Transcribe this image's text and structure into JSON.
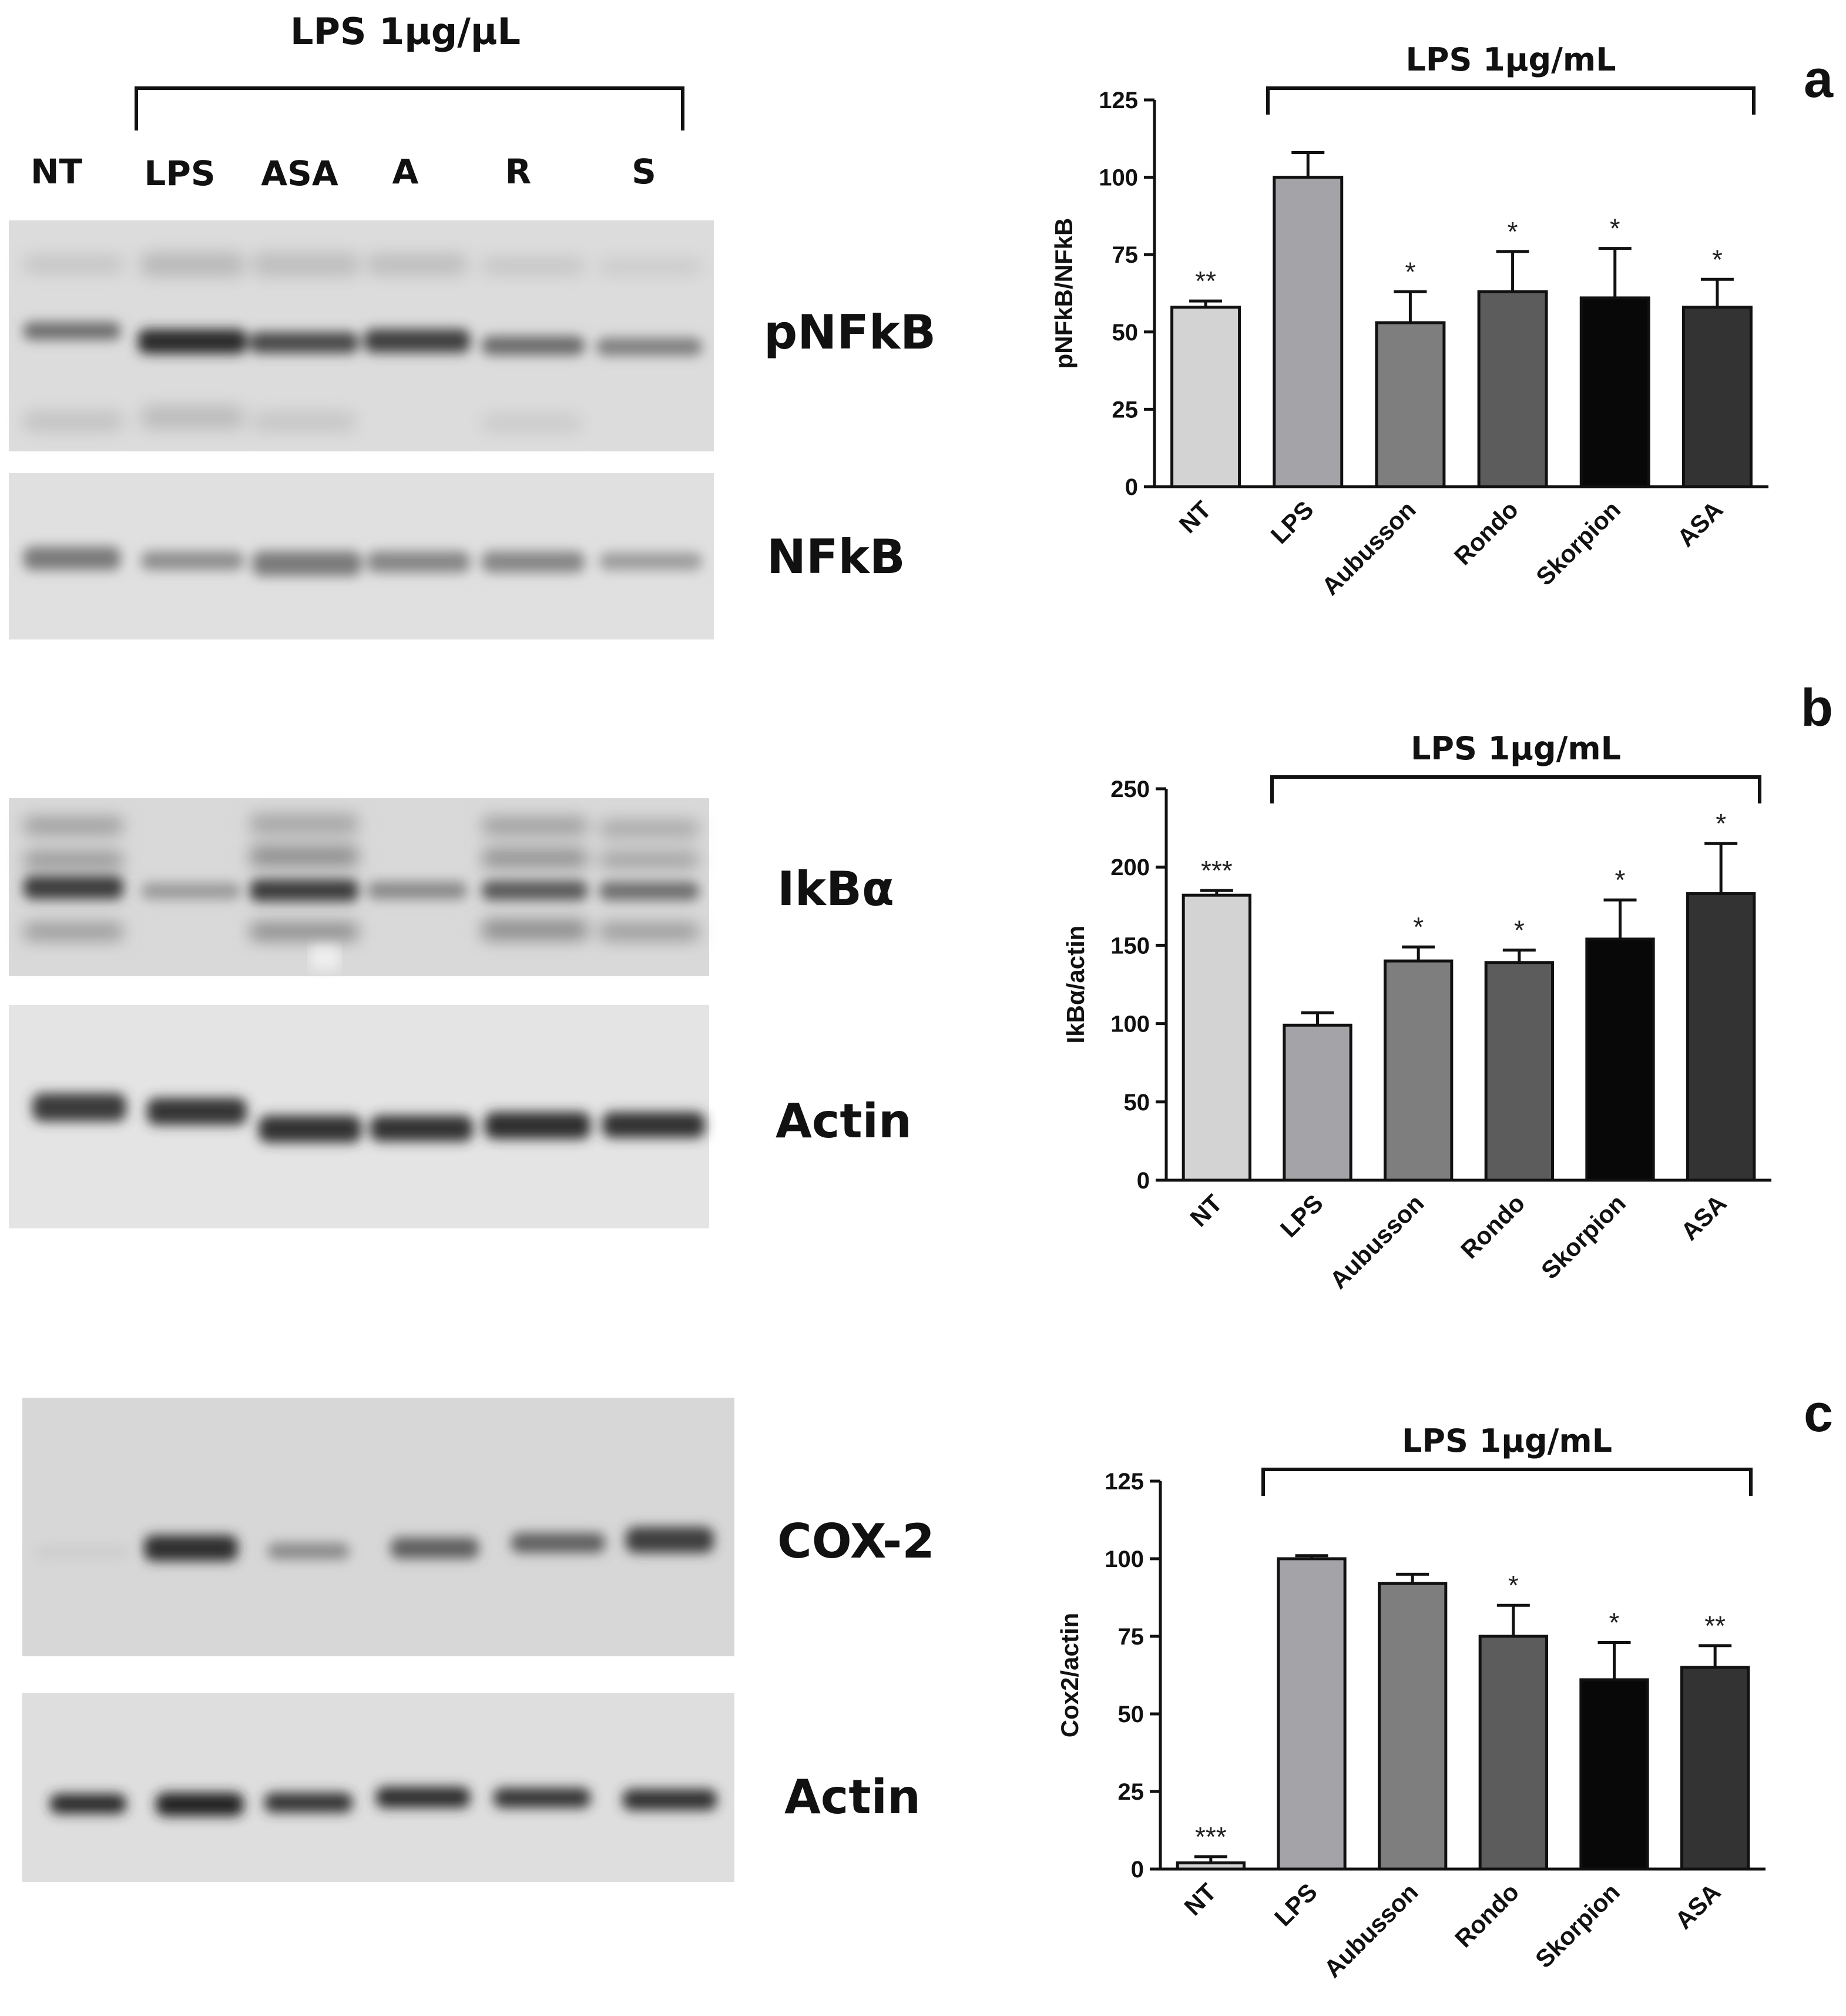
{
  "blots": {
    "header": "LPS 1µg/µL",
    "lanes": [
      "NT",
      "LPS",
      "ASA",
      "A",
      "R",
      "S"
    ],
    "labels": {
      "pnfkb": "pNFkB",
      "nfkb": "NFkB",
      "ikba": "IkBα",
      "actin1": "Actin",
      "cox2": "COX-2",
      "actin2": "Actin"
    }
  },
  "panels": {
    "a": "a",
    "b": "b",
    "c": "c"
  },
  "chart_data": [
    {
      "type": "bar",
      "panel": "a",
      "bracket_label": "LPS 1µg/mL",
      "ylabel": "pNFkB/NFkB",
      "categories": [
        "NT",
        "LPS",
        "Aubusson",
        "Rondo",
        "Skorpion",
        "ASA"
      ],
      "values": [
        58,
        100,
        53,
        63,
        61,
        58
      ],
      "errors": [
        2,
        8,
        10,
        13,
        16,
        9
      ],
      "significance": [
        "**",
        "",
        "*",
        "*",
        "*",
        "*"
      ],
      "ylim": [
        0,
        125
      ],
      "yticks": [
        0,
        25,
        50,
        75,
        100,
        125
      ],
      "colors": [
        "#d3d3d3",
        "#a3a3a8",
        "#7e7e7e",
        "#5c5c5c",
        "#080808",
        "#333333"
      ]
    },
    {
      "type": "bar",
      "panel": "b",
      "bracket_label": "LPS 1µg/mL",
      "ylabel": "IkBα/actin",
      "categories": [
        "NT",
        "LPS",
        "Aubusson",
        "Rondo",
        "Skorpion",
        "ASA"
      ],
      "values": [
        182,
        99,
        140,
        139,
        154,
        183
      ],
      "errors": [
        3,
        8,
        9,
        8,
        25,
        32
      ],
      "significance": [
        "***",
        "",
        "*",
        "*",
        "*",
        "*"
      ],
      "ylim": [
        0,
        250
      ],
      "yticks": [
        0,
        50,
        100,
        150,
        200,
        250
      ],
      "colors": [
        "#d3d3d3",
        "#a3a3a8",
        "#7e7e7e",
        "#5c5c5c",
        "#080808",
        "#333333"
      ]
    },
    {
      "type": "bar",
      "panel": "c",
      "bracket_label": "LPS 1µg/mL",
      "ylabel": "Cox2/actin",
      "categories": [
        "NT",
        "LPS",
        "Aubusson",
        "Rondo",
        "Skorpion",
        "ASA"
      ],
      "values": [
        2,
        100,
        92,
        75,
        61,
        65
      ],
      "errors": [
        2,
        1,
        3,
        10,
        12,
        7
      ],
      "significance": [
        "***",
        "",
        "",
        "*",
        "*",
        "**"
      ],
      "ylim": [
        0,
        125
      ],
      "yticks": [
        0,
        25,
        50,
        75,
        100,
        125
      ],
      "colors": [
        "#d3d3d3",
        "#a3a3a8",
        "#7e7e7e",
        "#5c5c5c",
        "#080808",
        "#333333"
      ]
    }
  ]
}
